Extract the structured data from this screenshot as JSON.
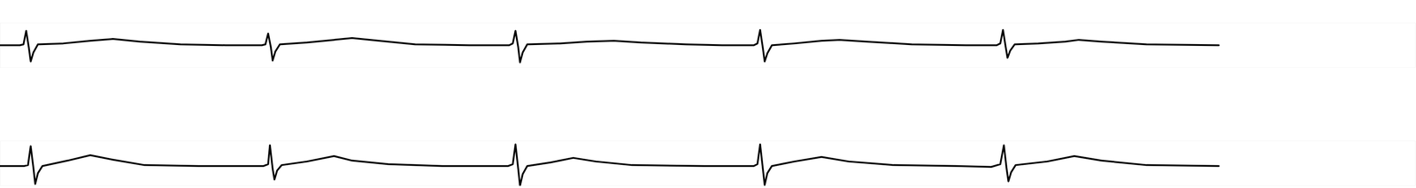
{
  "chart_data": [
    {
      "type": "line",
      "color": "#000000",
      "tick_labels": false,
      "grid": false,
      "xlim": [
        0,
        1568
      ],
      "ylim": [
        -25,
        25
      ],
      "x": [
        0,
        22,
        26,
        29,
        32,
        34,
        37,
        42,
        70,
        100,
        125,
        155,
        200,
        250,
        290,
        294,
        297,
        300,
        302,
        305,
        310,
        340,
        370,
        390,
        420,
        460,
        520,
        564,
        568,
        571,
        574,
        576,
        579,
        584,
        620,
        650,
        680,
        710,
        760,
        800,
        835,
        839,
        842,
        845,
        847,
        850,
        855,
        880,
        910,
        930,
        960,
        1010,
        1070,
        1104,
        1108,
        1111,
        1114,
        1116,
        1119,
        1124,
        1150,
        1180,
        1195,
        1220,
        1270,
        1350
      ],
      "values": [
        0,
        0,
        1,
        16,
        -3,
        -18,
        -8,
        1,
        2,
        5,
        7,
        4,
        1,
        0,
        0,
        1,
        13,
        -2,
        -17,
        -7,
        1,
        3,
        6,
        8,
        5,
        1,
        0,
        0,
        2,
        16,
        -2,
        -19,
        -8,
        1,
        2,
        4,
        5,
        3,
        1,
        0,
        0,
        2,
        17,
        -3,
        -18,
        -9,
        0,
        2,
        5,
        6,
        4,
        1,
        0,
        0,
        2,
        17,
        -2,
        -14,
        -6,
        1,
        2,
        4,
        6,
        4,
        1,
        0
      ]
    },
    {
      "type": "line",
      "color": "#000000",
      "tick_labels": false,
      "grid": false,
      "xlim": [
        0,
        1568
      ],
      "ylim": [
        -22,
        28
      ],
      "x": [
        0,
        27,
        31,
        34,
        37,
        39,
        42,
        47,
        75,
        100,
        125,
        160,
        220,
        280,
        292,
        297,
        299,
        302,
        304,
        307,
        312,
        340,
        370,
        390,
        430,
        490,
        550,
        563,
        568,
        571,
        574,
        576,
        579,
        584,
        610,
        635,
        660,
        700,
        780,
        835,
        839,
        842,
        845,
        847,
        850,
        855,
        880,
        910,
        940,
        990,
        1060,
        1098,
        1108,
        1112,
        1115,
        1117,
        1120,
        1125,
        1160,
        1190,
        1220,
        1270,
        1350
      ],
      "values": [
        0,
        0,
        1,
        22,
        -2,
        -20,
        -8,
        0,
        6,
        12,
        7,
        1,
        0,
        0,
        0,
        2,
        23,
        -3,
        -15,
        -5,
        1,
        5,
        11,
        6,
        2,
        0,
        0,
        0,
        2,
        24,
        -3,
        -22,
        -9,
        0,
        4,
        9,
        5,
        1,
        0,
        0,
        2,
        24,
        -3,
        -21,
        -8,
        0,
        5,
        10,
        5,
        1,
        0,
        -1,
        2,
        23,
        -3,
        -17,
        -7,
        1,
        5,
        11,
        6,
        1,
        0
      ]
    }
  ]
}
